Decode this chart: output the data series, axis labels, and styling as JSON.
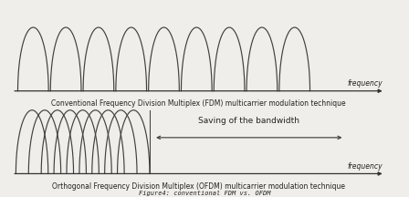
{
  "bg_color": "#f0eeea",
  "title1": "Conventional Frequency Division Multiplex (FDM) multicarrier modulation technique",
  "title2": "Orthogonal Frequency Division Multiplex (OFDM) multicarrier modulation technique",
  "figure_caption": "Figure4: conventional FDM vs. OFDM",
  "freq_label": "frequency",
  "bandwidth_label": "Saving of the bandwidth",
  "fdm_n_carriers": 9,
  "ofdm_n_carriers": 9,
  "line_color": "#404040",
  "text_color": "#222222",
  "axis_color": "#333333",
  "title_fontsize": 5.5,
  "caption_fontsize": 5.0,
  "freq_fontsize": 5.5,
  "bw_fontsize": 6.5
}
